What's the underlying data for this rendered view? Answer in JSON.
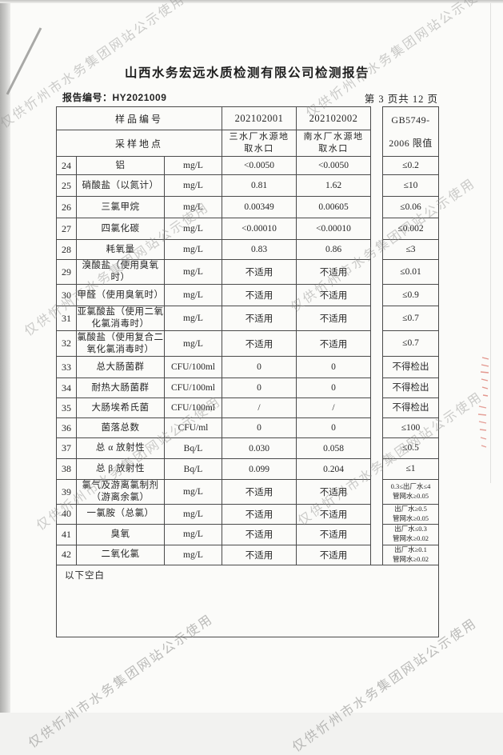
{
  "page": {
    "title": "山西水务宏远水质检测有限公司检测报告",
    "report_no": "报告编号：HY2021009",
    "page_indicator": "第 3 页共 12 页",
    "watermark_text": "仅供忻州市水务集团网站公示使用",
    "below_blank_note": "以下空白"
  },
  "table": {
    "header": {
      "sample_no_label": "样品编号",
      "sample_ids": [
        "202102001",
        "202102002"
      ],
      "location_label": "采样地点",
      "locations": [
        "三水厂水源地\n取水口",
        "南水厂水源地\n取水口"
      ],
      "limit_label": "GB5749-\n2006 限值"
    },
    "rows": [
      {
        "no": "24",
        "name": "铝",
        "unit": "mg/L",
        "v1": "<0.0050",
        "v2": "<0.0050",
        "limit": "≤0.2"
      },
      {
        "no": "25",
        "name": "硝酸盐（以氮计）",
        "unit": "mg/L",
        "v1": "0.81",
        "v2": "1.62",
        "limit": "≤10"
      },
      {
        "no": "26",
        "name": "三氯甲烷",
        "unit": "mg/L",
        "v1": "0.00349",
        "v2": "0.00605",
        "limit": "≤0.06"
      },
      {
        "no": "27",
        "name": "四氯化碳",
        "unit": "mg/L",
        "v1": "<0.00010",
        "v2": "<0.00010",
        "limit": "≤0.002"
      },
      {
        "no": "28",
        "name": "耗氧量",
        "unit": "mg/L",
        "v1": "0.83",
        "v2": "0.86",
        "limit": "≤3"
      },
      {
        "no": "29",
        "name": "溴酸盐（使用臭氧\n时）",
        "unit": "mg/L",
        "v1": "不适用",
        "v2": "不适用",
        "limit": "≤0.01"
      },
      {
        "no": "30",
        "name": "甲醛（使用臭氧时）",
        "unit": "mg/L",
        "v1": "不适用",
        "v2": "不适用",
        "limit": "≤0.9"
      },
      {
        "no": "31",
        "name": "亚氯酸盐（使用二氧\n化氯消毒时）",
        "unit": "mg/L",
        "v1": "不适用",
        "v2": "不适用",
        "limit": "≤0.7"
      },
      {
        "no": "32",
        "name": "氯酸盐（使用复合二\n氧化氯消毒时）",
        "unit": "mg/L",
        "v1": "不适用",
        "v2": "不适用",
        "limit": "≤0.7"
      },
      {
        "no": "33",
        "name": "总大肠菌群",
        "unit": "CFU/100ml",
        "v1": "0",
        "v2": "0",
        "limit": "不得检出"
      },
      {
        "no": "34",
        "name": "耐热大肠菌群",
        "unit": "CFU/100ml",
        "v1": "0",
        "v2": "0",
        "limit": "不得检出"
      },
      {
        "no": "35",
        "name": "大肠埃希氏菌",
        "unit": "CFU/100ml",
        "v1": "/",
        "v2": "/",
        "limit": "不得检出"
      },
      {
        "no": "36",
        "name": "菌落总数",
        "unit": "CFU/ml",
        "v1": "0",
        "v2": "0",
        "limit": "≤100"
      },
      {
        "no": "37",
        "name": "总 α 放射性",
        "unit": "Bq/L",
        "v1": "0.030",
        "v2": "0.058",
        "limit": "≤0.5"
      },
      {
        "no": "38",
        "name": "总 β 放射性",
        "unit": "Bq/L",
        "v1": "0.099",
        "v2": "0.204",
        "limit": "≤1"
      },
      {
        "no": "39",
        "name": "氯气及游离氯制剂\n（游离余氯）",
        "unit": "mg/L",
        "v1": "不适用",
        "v2": "不适用",
        "limit": "0.3≤出厂水≤4\n管网水≥0.05"
      },
      {
        "no": "40",
        "name": "一氯胺（总氯）",
        "unit": "mg/L",
        "v1": "不适用",
        "v2": "不适用",
        "limit": "出厂水≥0.5\n管网水≥0.05"
      },
      {
        "no": "41",
        "name": "臭氧",
        "unit": "mg/L",
        "v1": "不适用",
        "v2": "不适用",
        "limit": "出厂水≤0.3\n管网水≥0.02"
      },
      {
        "no": "42",
        "name": "二氧化氯",
        "unit": "mg/L",
        "v1": "不适用",
        "v2": "不适用",
        "limit": "出厂水≥0.1\n管网水≥0.02"
      }
    ]
  }
}
